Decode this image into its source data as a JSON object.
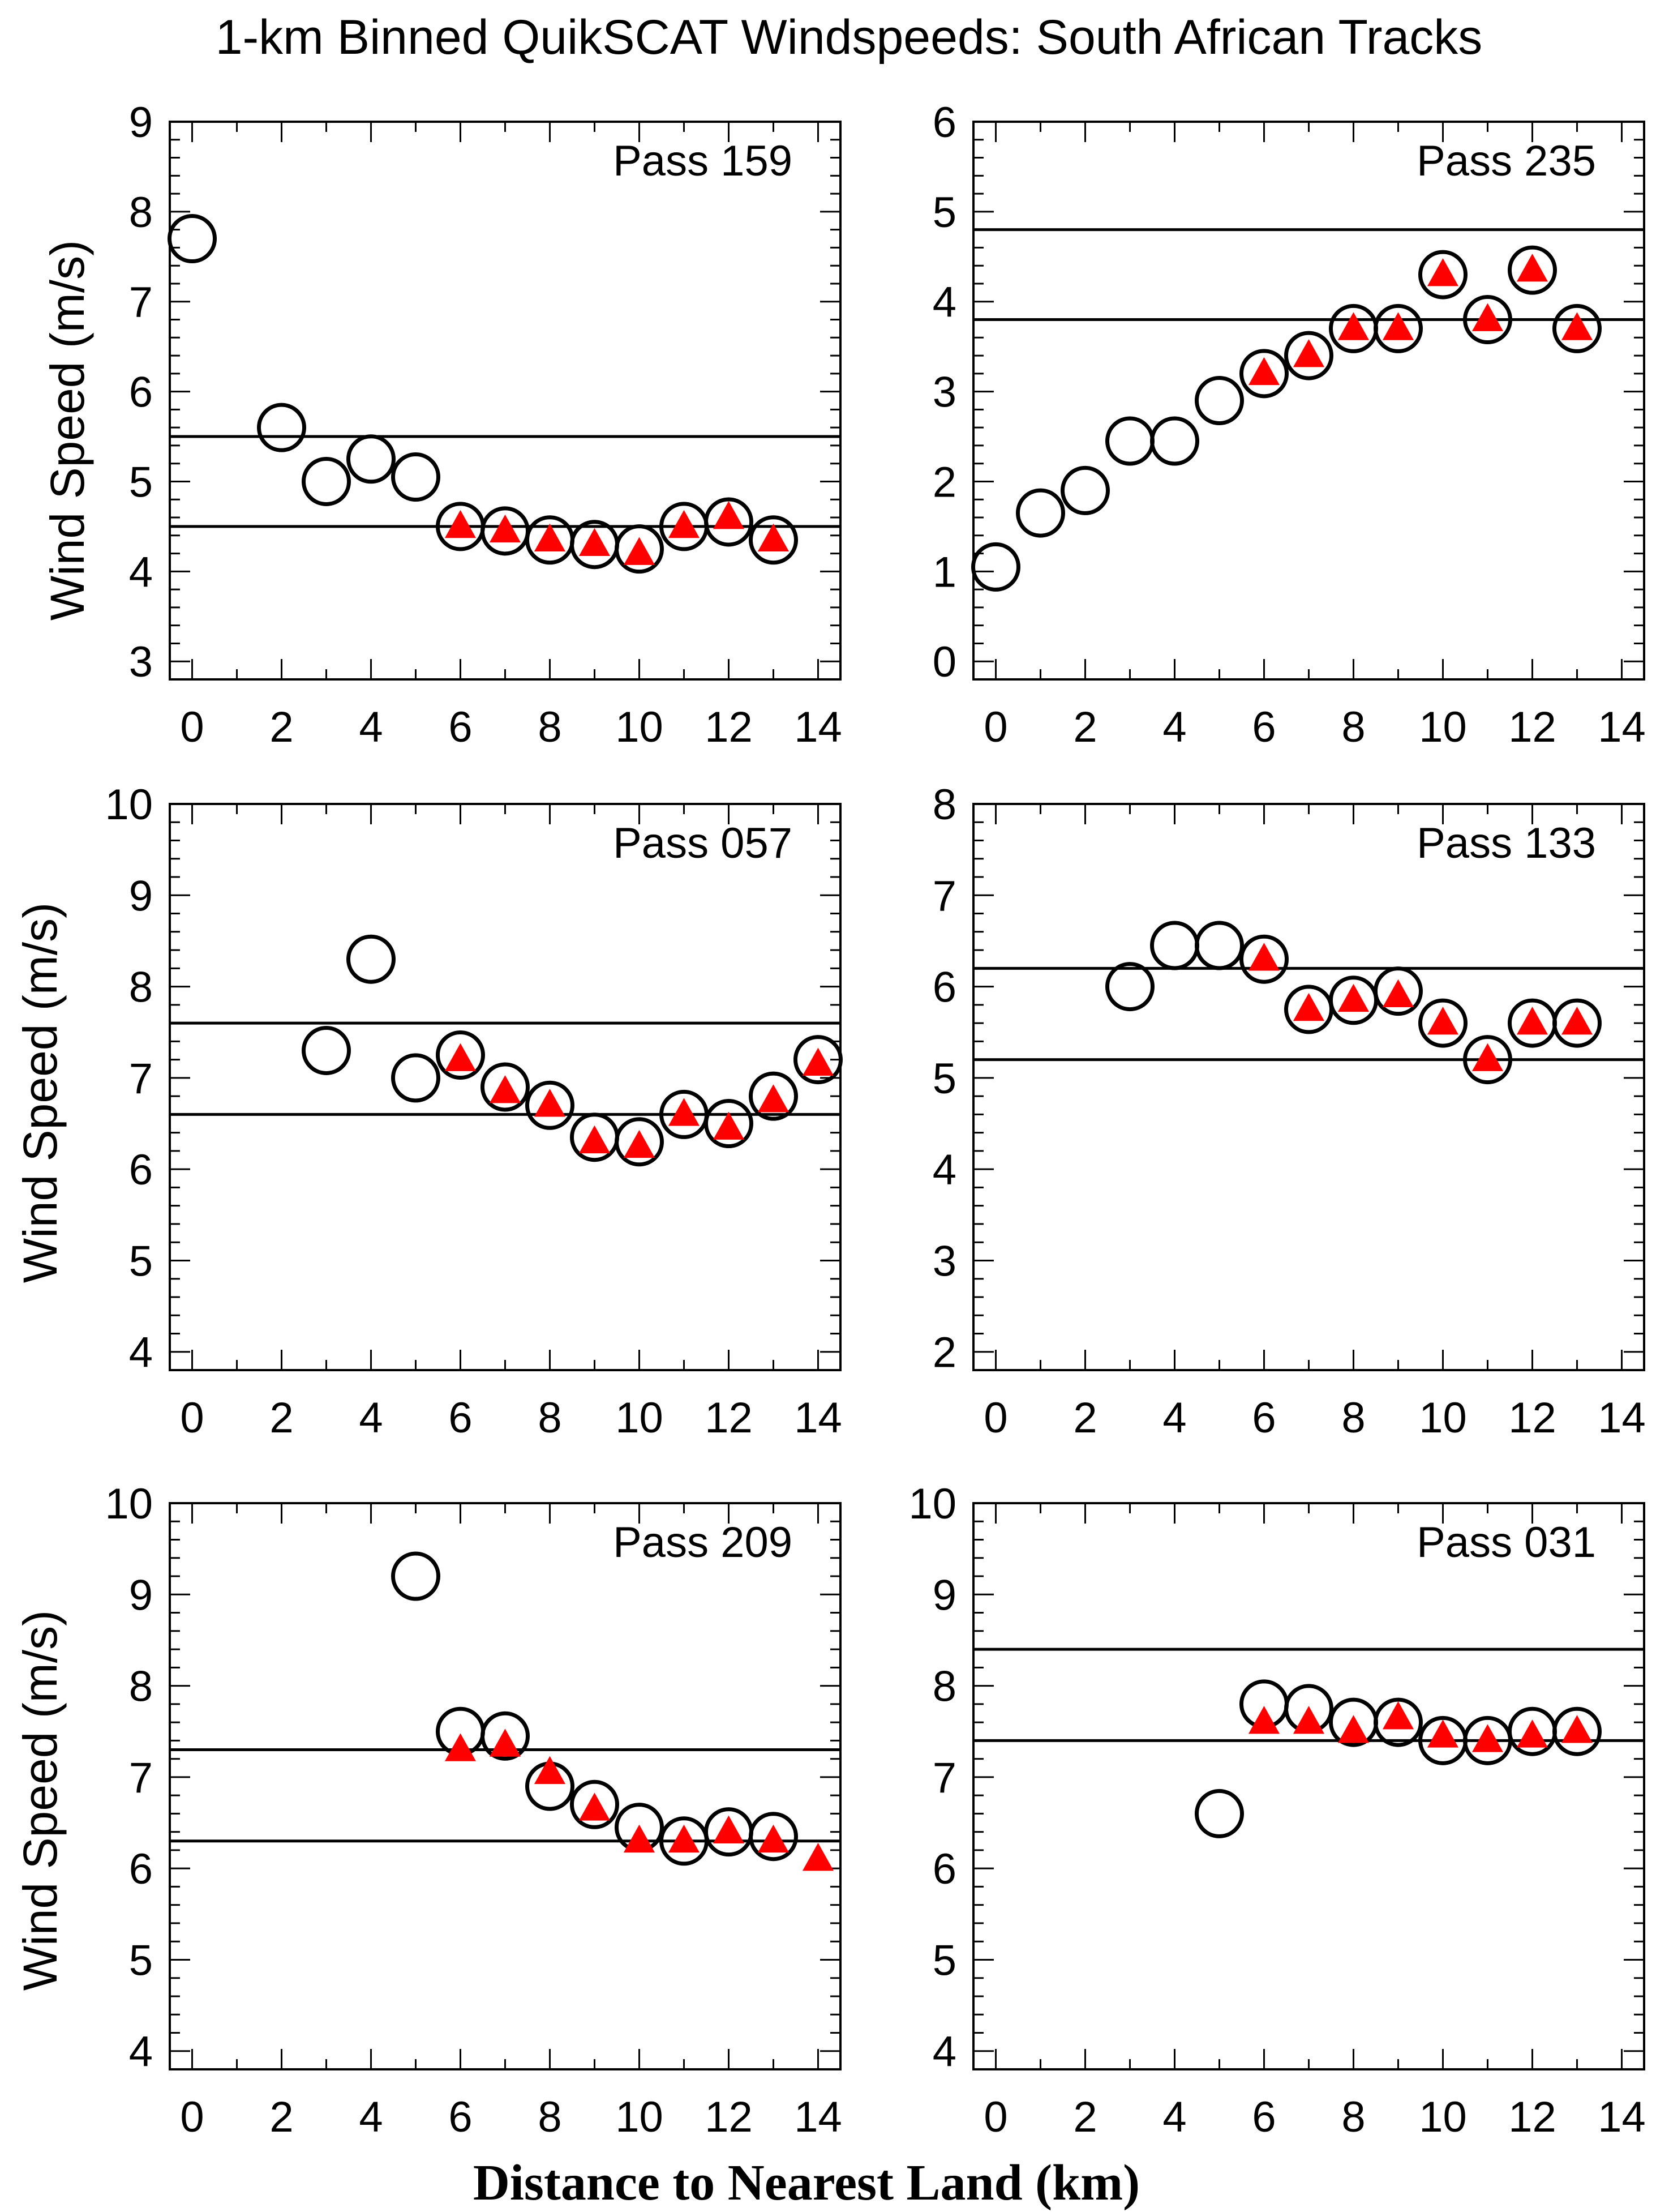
{
  "figure": {
    "title": "1-km Binned QuikSCAT Windspeeds: South African Tracks",
    "xlabel": "Distance to Nearest Land (km)",
    "ylabel": "Wind Speed (m/s)"
  },
  "colors": {
    "axis": "#000000",
    "circle": "#000000",
    "triangle": "#ff0000"
  },
  "chart_data": [
    {
      "type": "scatter",
      "title": "Pass 159",
      "xlim": [
        -0.5,
        14.5
      ],
      "ylim": [
        2.8,
        9.0
      ],
      "xticks": [
        0,
        2,
        4,
        6,
        8,
        10,
        12,
        14
      ],
      "yticks": [
        3,
        4,
        5,
        6,
        7,
        8,
        9
      ],
      "hlines": [
        5.5,
        4.5
      ],
      "series": [
        {
          "name": "circles",
          "marker": "circle",
          "x": [
            0,
            2,
            3,
            4,
            5,
            6,
            7,
            8,
            9,
            10,
            11,
            12,
            13
          ],
          "y": [
            7.7,
            5.6,
            5.0,
            5.25,
            5.05,
            4.5,
            4.45,
            4.35,
            4.3,
            4.25,
            4.5,
            4.55,
            4.35
          ]
        },
        {
          "name": "triangles",
          "marker": "triangle",
          "x": [
            6,
            7,
            8,
            9,
            10,
            11,
            12,
            13
          ],
          "y": [
            4.5,
            4.45,
            4.35,
            4.3,
            4.2,
            4.5,
            4.6,
            4.35
          ]
        }
      ]
    },
    {
      "type": "scatter",
      "title": "Pass 235",
      "xlim": [
        -0.5,
        14.5
      ],
      "ylim": [
        -0.2,
        6.0
      ],
      "xticks": [
        0,
        2,
        4,
        6,
        8,
        10,
        12,
        14
      ],
      "yticks": [
        0,
        1,
        2,
        3,
        4,
        5,
        6
      ],
      "hlines": [
        4.8,
        3.8
      ],
      "series": [
        {
          "name": "circles",
          "marker": "circle",
          "x": [
            0,
            1,
            2,
            3,
            4,
            5,
            6,
            7,
            8,
            9,
            10,
            11,
            12,
            13
          ],
          "y": [
            1.05,
            1.65,
            1.9,
            2.45,
            2.45,
            2.9,
            3.2,
            3.4,
            3.7,
            3.7,
            4.3,
            3.8,
            4.35,
            3.7
          ]
        },
        {
          "name": "triangles",
          "marker": "triangle",
          "x": [
            6,
            7,
            8,
            9,
            10,
            11,
            12,
            13
          ],
          "y": [
            3.2,
            3.4,
            3.7,
            3.7,
            4.3,
            3.8,
            4.35,
            3.7
          ]
        }
      ]
    },
    {
      "type": "scatter",
      "title": "Pass 057",
      "xlim": [
        -0.5,
        14.5
      ],
      "ylim": [
        3.8,
        10.0
      ],
      "xticks": [
        0,
        2,
        4,
        6,
        8,
        10,
        12,
        14
      ],
      "yticks": [
        4,
        5,
        6,
        7,
        8,
        9,
        10
      ],
      "hlines": [
        7.6,
        6.6
      ],
      "series": [
        {
          "name": "circles",
          "marker": "circle",
          "x": [
            3,
            4,
            5,
            6,
            7,
            8,
            9,
            10,
            11,
            12,
            13,
            14
          ],
          "y": [
            7.3,
            8.3,
            7.0,
            7.25,
            6.9,
            6.7,
            6.35,
            6.3,
            6.6,
            6.5,
            6.8,
            7.2
          ]
        },
        {
          "name": "triangles",
          "marker": "triangle",
          "x": [
            6,
            7,
            8,
            9,
            10,
            11,
            12,
            13,
            14
          ],
          "y": [
            7.2,
            6.85,
            6.7,
            6.3,
            6.25,
            6.6,
            6.45,
            6.75,
            7.15
          ]
        }
      ]
    },
    {
      "type": "scatter",
      "title": "Pass 133",
      "xlim": [
        -0.5,
        14.5
      ],
      "ylim": [
        1.8,
        8.0
      ],
      "xticks": [
        0,
        2,
        4,
        6,
        8,
        10,
        12,
        14
      ],
      "yticks": [
        2,
        3,
        4,
        5,
        6,
        7,
        8
      ],
      "hlines": [
        6.2,
        5.2
      ],
      "series": [
        {
          "name": "circles",
          "marker": "circle",
          "x": [
            3,
            4,
            5,
            6,
            7,
            8,
            9,
            10,
            11,
            12,
            13
          ],
          "y": [
            6.0,
            6.45,
            6.45,
            6.3,
            5.75,
            5.85,
            5.95,
            5.6,
            5.2,
            5.6,
            5.6
          ]
        },
        {
          "name": "triangles",
          "marker": "triangle",
          "x": [
            6,
            7,
            8,
            9,
            10,
            11,
            12,
            13
          ],
          "y": [
            6.3,
            5.75,
            5.85,
            5.9,
            5.6,
            5.2,
            5.6,
            5.6
          ]
        }
      ]
    },
    {
      "type": "scatter",
      "title": "Pass 209",
      "xlim": [
        -0.5,
        14.5
      ],
      "ylim": [
        3.8,
        10.0
      ],
      "xticks": [
        0,
        2,
        4,
        6,
        8,
        10,
        12,
        14
      ],
      "yticks": [
        4,
        5,
        6,
        7,
        8,
        9,
        10
      ],
      "hlines": [
        7.3,
        6.3
      ],
      "series": [
        {
          "name": "circles",
          "marker": "circle",
          "x": [
            5,
            6,
            7,
            8,
            9,
            10,
            11,
            12,
            13
          ],
          "y": [
            9.2,
            7.5,
            7.45,
            6.9,
            6.7,
            6.45,
            6.3,
            6.4,
            6.35
          ]
        },
        {
          "name": "triangles",
          "marker": "triangle",
          "x": [
            6,
            7,
            8,
            9,
            10,
            11,
            12,
            13,
            14
          ],
          "y": [
            7.3,
            7.35,
            7.05,
            6.65,
            6.3,
            6.3,
            6.4,
            6.3,
            6.1
          ]
        }
      ]
    },
    {
      "type": "scatter",
      "title": "Pass 031",
      "xlim": [
        -0.5,
        14.5
      ],
      "ylim": [
        3.8,
        10.0
      ],
      "xticks": [
        0,
        2,
        4,
        6,
        8,
        10,
        12,
        14
      ],
      "yticks": [
        4,
        5,
        6,
        7,
        8,
        9,
        10
      ],
      "hlines": [
        8.4,
        7.4
      ],
      "series": [
        {
          "name": "circles",
          "marker": "circle",
          "x": [
            5,
            6,
            7,
            8,
            9,
            10,
            11,
            12,
            13
          ],
          "y": [
            6.6,
            7.8,
            7.75,
            7.6,
            7.6,
            7.4,
            7.4,
            7.5,
            7.5
          ]
        },
        {
          "name": "triangles",
          "marker": "triangle",
          "x": [
            6,
            7,
            8,
            9,
            10,
            11,
            12,
            13
          ],
          "y": [
            7.6,
            7.6,
            7.5,
            7.65,
            7.45,
            7.4,
            7.45,
            7.5
          ]
        }
      ]
    }
  ]
}
